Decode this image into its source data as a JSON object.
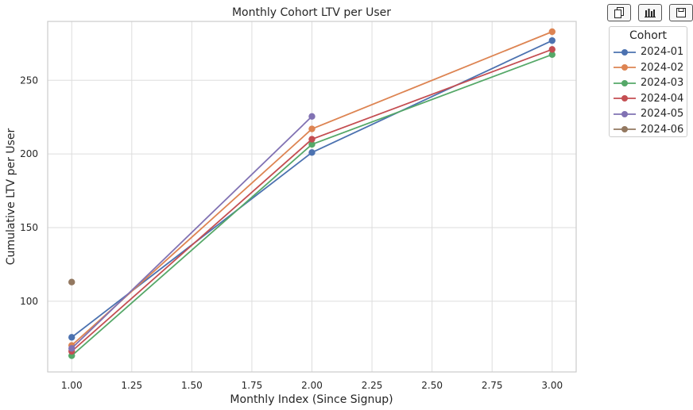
{
  "toolbar": {
    "buttons": [
      {
        "name": "copy-button",
        "icon": "copy-icon"
      },
      {
        "name": "chart-button",
        "icon": "bar-chart-icon"
      },
      {
        "name": "save-button",
        "icon": "save-icon"
      }
    ]
  },
  "chart_data": {
    "type": "line",
    "title": "Monthly Cohort LTV per User",
    "xlabel": "Monthly Index (Since Signup)",
    "ylabel": "Cumulative LTV per User",
    "xlim": [
      0.9,
      3.1
    ],
    "ylim": [
      52,
      290
    ],
    "xticks": [
      "1.00",
      "1.25",
      "1.50",
      "1.75",
      "2.00",
      "2.25",
      "2.50",
      "2.75",
      "3.00"
    ],
    "yticks": [
      "100",
      "150",
      "200",
      "250"
    ],
    "grid": true,
    "legend": {
      "title": "Cohort",
      "placement": "outside-top-right"
    },
    "series": [
      {
        "name": "2024-01",
        "color": "#4c72b0",
        "x": [
          1,
          2,
          3
        ],
        "values": [
          75.5,
          201,
          277
        ]
      },
      {
        "name": "2024-02",
        "color": "#dd8452",
        "x": [
          1,
          2,
          3
        ],
        "values": [
          70,
          217,
          283
        ]
      },
      {
        "name": "2024-03",
        "color": "#55a868",
        "x": [
          1,
          2,
          3
        ],
        "values": [
          63,
          206.5,
          267.5
        ]
      },
      {
        "name": "2024-04",
        "color": "#c44e52",
        "x": [
          1,
          2,
          3
        ],
        "values": [
          66,
          210,
          271
        ]
      },
      {
        "name": "2024-05",
        "color": "#8172b3",
        "x": [
          1,
          2
        ],
        "values": [
          68,
          225.5
        ]
      },
      {
        "name": "2024-06",
        "color": "#937860",
        "x": [
          1
        ],
        "values": [
          113
        ]
      }
    ]
  }
}
